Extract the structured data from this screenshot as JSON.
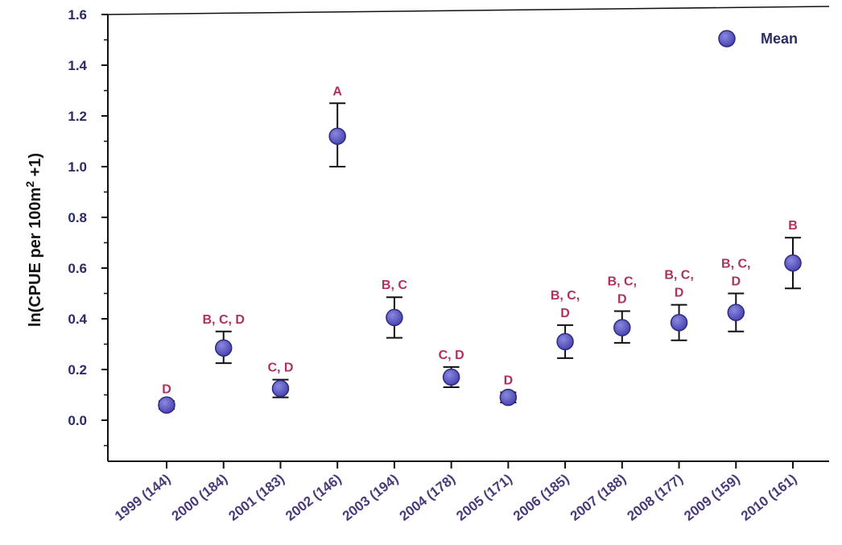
{
  "chart_data": {
    "type": "scatter",
    "ylabel": "ln(CPUE per 100m",
    "ylabel_sup": "2",
    "ylabel_tail": " +1)",
    "ylim": [
      -0.15,
      1.6
    ],
    "yticks": [
      0.0,
      0.2,
      0.4,
      0.6,
      0.8,
      1.0,
      1.2,
      1.4,
      1.6
    ],
    "ytick_labels": [
      "0.0",
      "0.2",
      "0.4",
      "0.6",
      "0.8",
      "1.0",
      "1.2",
      "1.4",
      "1.6"
    ],
    "categories": [
      "1999 (144)",
      "2000 (184)",
      "2001 (183)",
      "2002 (146)",
      "2003 (194)",
      "2004 (178)",
      "2005 (171)",
      "2006 (185)",
      "2007 (188)",
      "2008 (177)",
      "2009 (159)",
      "2010 (161)"
    ],
    "series": [
      {
        "name": "Mean",
        "values": [
          0.06,
          0.285,
          0.125,
          1.12,
          0.405,
          0.17,
          0.09,
          0.31,
          0.365,
          0.385,
          0.425,
          0.62
        ],
        "error_low": [
          0.045,
          0.225,
          0.09,
          1.0,
          0.325,
          0.13,
          0.07,
          0.245,
          0.305,
          0.315,
          0.35,
          0.52
        ],
        "error_high": [
          0.075,
          0.35,
          0.16,
          1.25,
          0.485,
          0.21,
          0.11,
          0.375,
          0.43,
          0.455,
          0.5,
          0.72
        ]
      }
    ],
    "significance_labels": [
      [
        "D"
      ],
      [
        "B, C, D"
      ],
      [
        "C, D"
      ],
      [
        "A"
      ],
      [
        "B, C"
      ],
      [
        "C, D"
      ],
      [
        "D"
      ],
      [
        "B, C,",
        "D"
      ],
      [
        "B, C,",
        "D"
      ],
      [
        "B, C,",
        "D"
      ],
      [
        "B, C,",
        "D"
      ],
      [
        "B"
      ]
    ],
    "legend": {
      "label": "Mean",
      "position": "top-right"
    },
    "grid": false,
    "colors": {
      "marker": "#5a57c2",
      "marker_edge": "#2d2a80",
      "error_bar": "#111111",
      "significance": "#b2305a",
      "tick_text": "#2b2b66",
      "x_tick_text": "#4b3a7a"
    }
  }
}
